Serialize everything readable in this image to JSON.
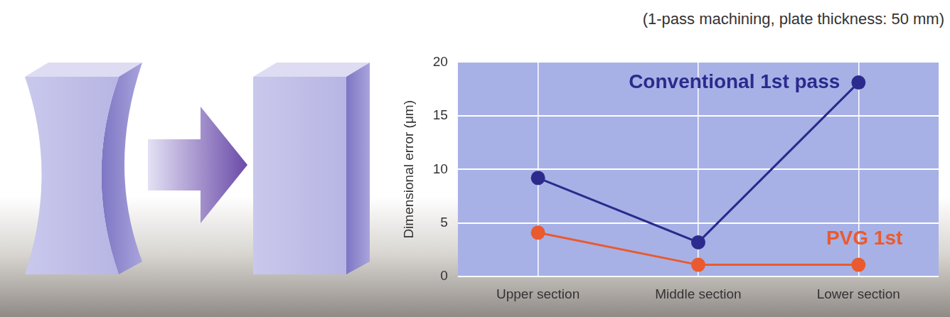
{
  "chart_data": {
    "type": "line",
    "title": "(1-pass machining, plate thickness: 50 mm)",
    "y_label": "Dimensional error (μm)",
    "categories": [
      "Upper section",
      "Middle section",
      "Lower section"
    ],
    "series": [
      {
        "name": "Conventional 1st pass",
        "color": "#2c2a8c",
        "values": [
          9.2,
          3.2,
          18.1
        ],
        "marker": "circle"
      },
      {
        "name": "PVG 1st",
        "color": "#ea5a2e",
        "values": [
          4.1,
          1.1,
          1.1
        ],
        "marker": "circle"
      }
    ],
    "ylim": [
      0,
      20
    ],
    "yticks": [
      0,
      5,
      10,
      15,
      20
    ],
    "grid": true
  }
}
